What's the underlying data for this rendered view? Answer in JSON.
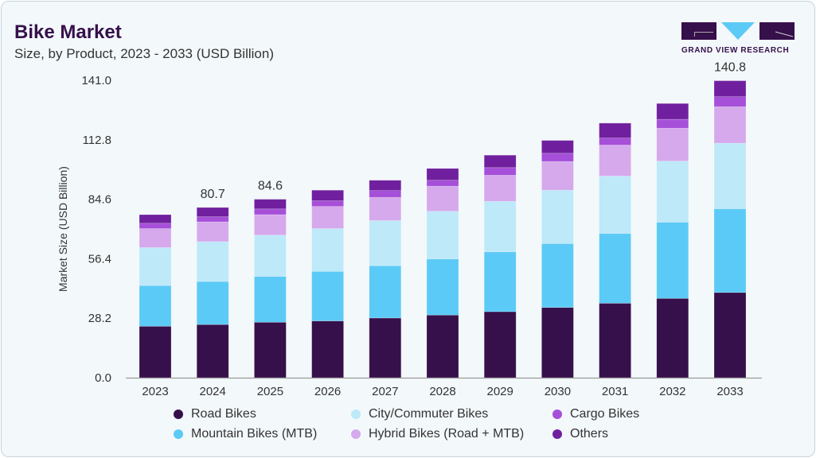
{
  "header": {
    "title": "Bike Market",
    "subtitle": "Size, by Product, 2023 - 2033 (USD Billion)"
  },
  "logo": {
    "text": "GRAND VIEW RESEARCH"
  },
  "chart_data": {
    "type": "bar",
    "stacked": true,
    "ylabel": "Market Size (USD Billion)",
    "xlabel": "",
    "ylim": [
      0,
      141
    ],
    "yticks": [
      "0.0",
      "28.2",
      "56.4",
      "84.6",
      "112.8",
      "141.0"
    ],
    "categories": [
      "2023",
      "2024",
      "2025",
      "2026",
      "2027",
      "2028",
      "2029",
      "2030",
      "2031",
      "2032",
      "2033"
    ],
    "series": [
      {
        "name": "Road Bikes",
        "color": "#36104a",
        "values": [
          24.4,
          25.2,
          26.3,
          26.9,
          28.3,
          29.7,
          31.3,
          33.3,
          35.3,
          37.6,
          40.4
        ]
      },
      {
        "name": "Mountain Bikes (MTB)",
        "color": "#5ccaf6",
        "values": [
          19.3,
          20.4,
          21.7,
          23.5,
          24.8,
          26.6,
          28.4,
          30.3,
          33.1,
          36.1,
          39.7
        ]
      },
      {
        "name": "City/Commuter Bikes",
        "color": "#bde9f9",
        "values": [
          18.0,
          18.9,
          19.6,
          20.3,
          21.4,
          22.6,
          23.9,
          25.3,
          27.2,
          29.0,
          31.1
        ]
      },
      {
        "name": "Hybrid Bikes (Road + MTB)",
        "color": "#d5a9ec",
        "values": [
          9.0,
          9.4,
          9.7,
          10.5,
          11.0,
          11.9,
          12.4,
          13.6,
          14.7,
          15.6,
          17.3
        ]
      },
      {
        "name": "Cargo Bikes",
        "color": "#a64fd8",
        "values": [
          2.5,
          2.4,
          2.7,
          2.7,
          3.2,
          2.8,
          3.6,
          3.9,
          3.3,
          4.2,
          4.7
        ]
      },
      {
        "name": "Others",
        "color": "#70209e",
        "values": [
          4.1,
          4.4,
          4.6,
          5.0,
          4.9,
          5.6,
          5.9,
          6.1,
          7.1,
          7.5,
          7.6
        ]
      }
    ],
    "data_labels": [
      {
        "category": "2024",
        "text": "80.7"
      },
      {
        "category": "2025",
        "text": "84.6"
      },
      {
        "category": "2033",
        "text": "140.8"
      }
    ],
    "grid": false,
    "legend_position": "bottom"
  }
}
